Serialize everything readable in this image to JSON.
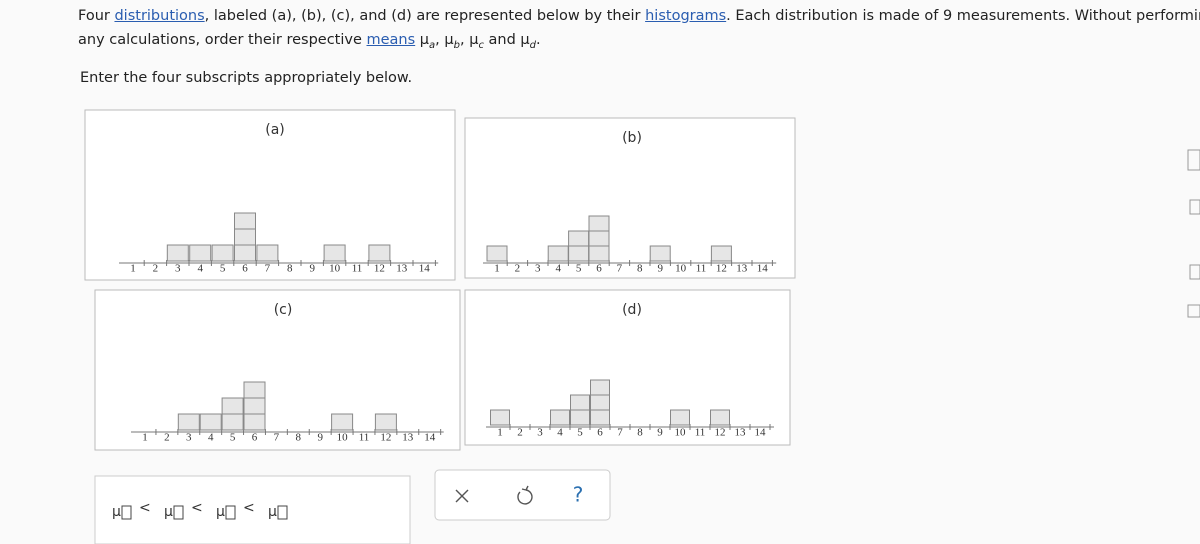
{
  "question": {
    "lines": [
      [
        {
          "text": "Four "
        },
        {
          "text": "distributions",
          "link": true
        },
        {
          "text": ", labeled (a), (b), (c), and (d) are represented below by their "
        },
        {
          "text": "histograms",
          "link": true
        },
        {
          "text": ". Each distribution is made of 9 measurements. Without performing"
        }
      ],
      [
        {
          "text": "any calculations, order their respective "
        },
        {
          "text": "means",
          "link": true
        },
        {
          "text": " μ"
        },
        {
          "text": "a",
          "sub": true
        },
        {
          "text": ", μ"
        },
        {
          "text": "b",
          "sub": true
        },
        {
          "text": ", μ"
        },
        {
          "text": "c",
          "sub": true
        },
        {
          "text": " and μ"
        },
        {
          "text": "d",
          "sub": true
        },
        {
          "text": "."
        }
      ]
    ],
    "instruction": "Enter the four subscripts appropriately below."
  },
  "histograms": [
    {
      "label": "(a)",
      "x_ticks": [
        1,
        2,
        3,
        4,
        5,
        6,
        7,
        8,
        9,
        10,
        11,
        12,
        13,
        14
      ],
      "counts": [
        0,
        0,
        1,
        1,
        1,
        3,
        1,
        0,
        0,
        1,
        0,
        1,
        0,
        0
      ]
    },
    {
      "label": "(b)",
      "x_ticks": [
        1,
        2,
        3,
        4,
        5,
        6,
        7,
        8,
        9,
        10,
        11,
        12,
        13,
        14
      ],
      "counts": [
        1,
        0,
        0,
        1,
        2,
        3,
        0,
        0,
        1,
        0,
        0,
        1,
        0,
        0
      ]
    },
    {
      "label": "(c)",
      "x_ticks": [
        1,
        2,
        3,
        4,
        5,
        6,
        7,
        8,
        9,
        10,
        11,
        12,
        13,
        14
      ],
      "counts": [
        0,
        0,
        1,
        1,
        2,
        3,
        0,
        0,
        0,
        1,
        0,
        1,
        0,
        0
      ]
    },
    {
      "label": "(d)",
      "x_ticks": [
        1,
        2,
        3,
        4,
        5,
        6,
        7,
        8,
        9,
        10,
        11,
        12,
        13,
        14
      ],
      "counts": [
        1,
        0,
        0,
        1,
        2,
        3,
        0,
        0,
        0,
        1,
        0,
        1,
        0,
        0
      ]
    }
  ],
  "answer": {
    "symbol": "μ",
    "relation": "<"
  },
  "toolbar": {
    "help": "?"
  }
}
